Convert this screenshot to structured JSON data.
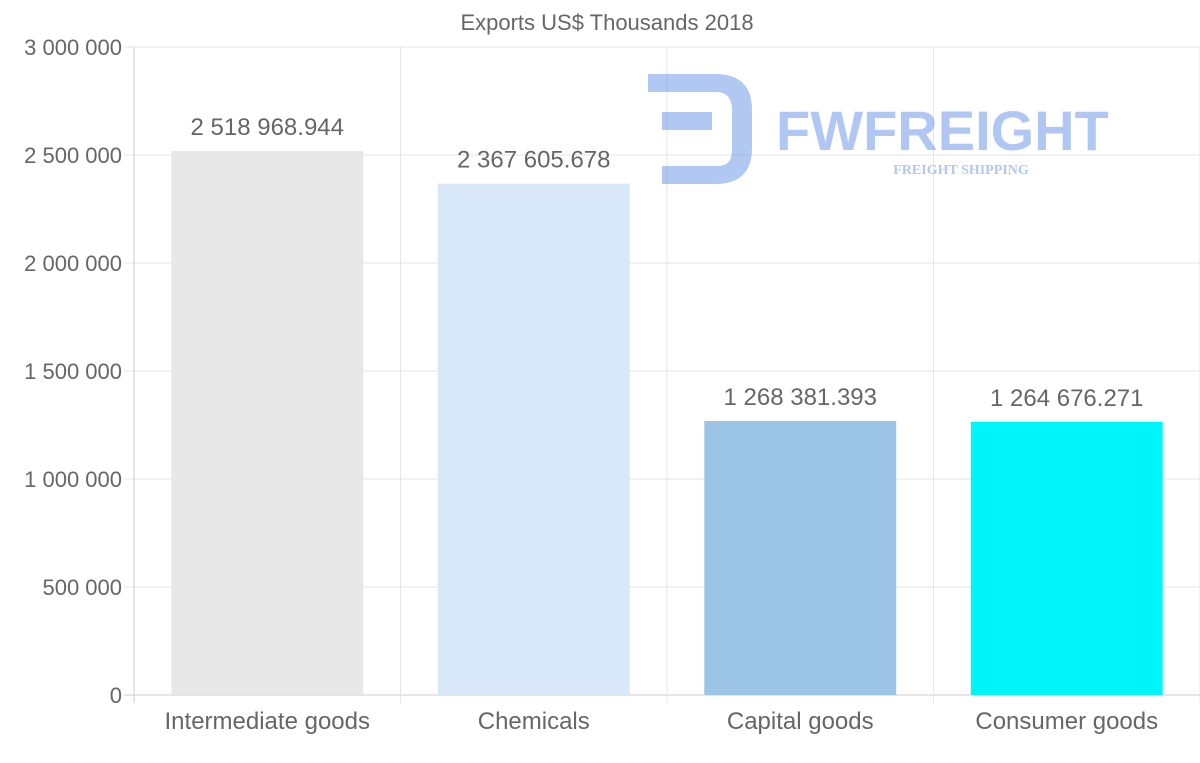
{
  "chart_data": {
    "type": "bar",
    "title": "Exports US$ Thousands 2018",
    "xlabel": "",
    "ylabel": "",
    "categories": [
      "Intermediate goods",
      "Chemicals",
      "Capital goods",
      "Consumer goods"
    ],
    "values": [
      2518968.944,
      2367605.678,
      1268381.393,
      1264676.271
    ],
    "data_labels": [
      "2 518 968.944",
      "2 367 605.678",
      "1 268 381.393",
      "1 264 676.271"
    ],
    "bar_colors": [
      "#e8e8e8",
      "#d8e8f8",
      "#9bc4e6",
      "#00f5f8"
    ],
    "ylim": [
      0,
      3000000
    ],
    "yticks": [
      0,
      500000,
      1000000,
      1500000,
      2000000,
      2500000,
      3000000
    ],
    "ytick_labels": [
      "0",
      "500 000",
      "1 000 000",
      "1 500 000",
      "2 000 000",
      "2 500 000",
      "3 000 000"
    ],
    "grid": true,
    "legend": "none"
  },
  "watermark": {
    "brand": "FWFREIGHT",
    "tagline": "FREIGHT SHIPPING",
    "color": "#6f9be8"
  },
  "colors": {
    "text": "#666666",
    "grid": "#e6e6e6",
    "axis": "#cccccc"
  }
}
